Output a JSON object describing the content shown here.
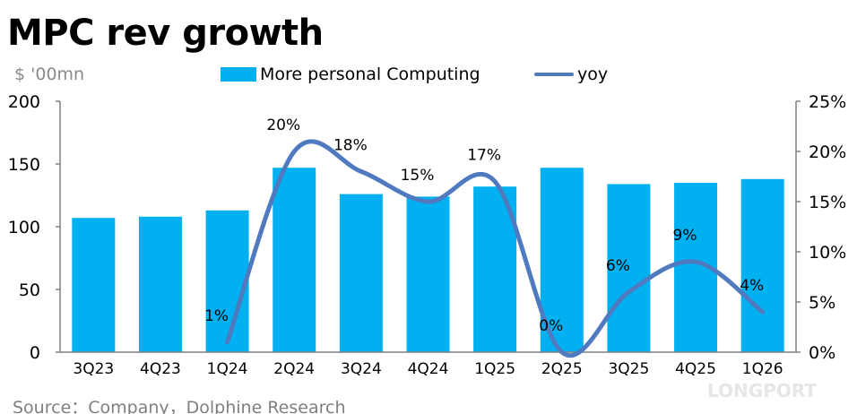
{
  "title": "MPC rev growth",
  "unit_label": "$ '00mn",
  "source": "Source：Company，Dolphine Research",
  "watermark": "LONGPORT",
  "colors": {
    "bar": "#00b0f0",
    "line": "#4f7ac0",
    "axis": "#808080"
  },
  "chart_data": {
    "type": "bar+line",
    "categories": [
      "3Q23",
      "4Q23",
      "1Q24",
      "2Q24",
      "3Q24",
      "4Q24",
      "1Q25",
      "2Q25",
      "3Q25",
      "4Q25",
      "1Q26"
    ],
    "series": [
      {
        "name": "More personal Computing",
        "type": "bar",
        "axis": "left",
        "values": [
          107,
          108,
          113,
          147,
          126,
          124,
          132,
          147,
          134,
          135,
          138
        ]
      },
      {
        "name": "yoy",
        "type": "line",
        "axis": "right",
        "values": [
          null,
          null,
          1,
          20,
          18,
          15,
          17,
          0,
          6,
          9,
          4
        ],
        "labels": [
          "",
          "",
          "1%",
          "20%",
          "18%",
          "15%",
          "17%",
          "0%",
          "6%",
          "9%",
          "4%"
        ]
      }
    ],
    "left_axis": {
      "range": [
        0,
        200
      ],
      "ticks": [
        "0",
        "50",
        "100",
        "150",
        "200"
      ]
    },
    "right_axis": {
      "range": [
        0,
        25
      ],
      "ticks": [
        "0%",
        "5%",
        "10%",
        "15%",
        "20%",
        "25%"
      ]
    },
    "legend_placement": "top",
    "grid": false
  }
}
